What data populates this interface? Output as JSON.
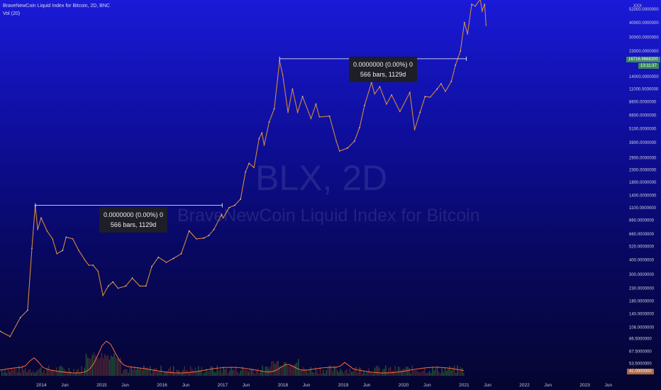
{
  "header": {
    "title": "BraveNewCoin Liquid Index for Bitcoin, 2D, BNC",
    "indicator": "Vol (20)"
  },
  "watermark": {
    "ticker": "BLX, 2D",
    "name": "BraveNewCoin Liquid Index for Bitcoin"
  },
  "tooltips": [
    {
      "line1": "0.0000000 (0.00%) 0",
      "line2": "566 bars, 1129d"
    },
    {
      "line1": "0.0000000 (0.00%) 0",
      "line2": "566 bars, 1129d"
    }
  ],
  "price_axis": {
    "labels": [
      "52000.0000000",
      "40000.0000000",
      "30000.0000000",
      "23000.0000000",
      "14000.0000000",
      "11000.0000000",
      "8600.0000000",
      "6600.0000000",
      "5100.0000000",
      "3900.0000000",
      "2900.0000000",
      "2300.0000000",
      "1800.0000000",
      "1400.0000000",
      "1100.0000000",
      "860.0000000",
      "660.0000000",
      "520.0000000",
      "400.0000000",
      "300.0000000",
      "230.0000000",
      "180.0000000",
      "140.0000000",
      "108.0000000",
      "86.5000000",
      "67.5000000",
      "53.5000000"
    ],
    "top_tag": "XXX",
    "current_price": "16716.9668200",
    "countdown": "13:11:37",
    "bottom_tag": "42.0000000"
  },
  "time_axis": {
    "labels": [
      "2014",
      "Jun",
      "2015",
      "Jun",
      "2016",
      "Jun",
      "2017",
      "Jun",
      "2018",
      "Jun",
      "2019",
      "Jun",
      "2020",
      "Jun",
      "2021",
      "Jun",
      "2022",
      "Jun",
      "2023",
      "Jun"
    ]
  },
  "colors": {
    "up": "#c8c8c8",
    "down": "#d08a3a",
    "line": "#ffffff",
    "volume_ma": "#ff6a3a",
    "vol_up": "#2f6a2f",
    "vol_down": "#6a2f2f",
    "tag_green": "#3a8a5a"
  },
  "chart_data": {
    "type": "line",
    "ylog": true,
    "ylim": [
      42,
      62000
    ],
    "xlim": [
      "2013-05-01",
      "2023-09-01"
    ],
    "series": [
      {
        "x": [
          "2013-05-01",
          "2013-07-01",
          "2013-09-01",
          "2013-10-15",
          "2013-11-10",
          "2013-11-30",
          "2013-12-15",
          "2014-01-05",
          "2014-02-10",
          "2014-03-15",
          "2014-04-10",
          "2014-05-15",
          "2014-06-05",
          "2014-07-15",
          "2014-08-20",
          "2014-09-25",
          "2014-10-20",
          "2014-11-15",
          "2014-12-15",
          "2015-01-14",
          "2015-02-15",
          "2015-03-15",
          "2015-04-15",
          "2015-06-01",
          "2015-07-10",
          "2015-08-25",
          "2015-10-01",
          "2015-11-05",
          "2015-12-15",
          "2016-02-01",
          "2016-03-15",
          "2016-05-01",
          "2016-06-18",
          "2016-08-01",
          "2016-09-15",
          "2016-10-15",
          "2016-11-15",
          "2016-12-31",
          "2017-01-10",
          "2017-02-15",
          "2017-03-20",
          "2017-04-25",
          "2017-05-25",
          "2017-06-15",
          "2017-07-15",
          "2017-08-15",
          "2017-09-01",
          "2017-09-15",
          "2017-10-15",
          "2017-11-15",
          "2017-12-17",
          "2018-01-05",
          "2018-02-06",
          "2018-03-05",
          "2018-04-05",
          "2018-05-05",
          "2018-06-25",
          "2018-07-25",
          "2018-08-15",
          "2018-10-15",
          "2018-11-25",
          "2018-12-15",
          "2019-02-01",
          "2019-03-15",
          "2019-04-15",
          "2019-05-15",
          "2019-06-26",
          "2019-07-15",
          "2019-08-15",
          "2019-09-25",
          "2019-10-26",
          "2019-12-15",
          "2020-02-13",
          "2020-03-13",
          "2020-04-15",
          "2020-05-15",
          "2020-06-15",
          "2020-07-27",
          "2020-08-20",
          "2020-09-15",
          "2020-10-21",
          "2020-11-15",
          "2020-12-15",
          "2021-01-08",
          "2021-01-27",
          "2021-02-21",
          "2021-03-15",
          "2021-04-14",
          "2021-04-25",
          "2021-05-10",
          "2021-05-19"
        ],
        "values": [
          100,
          90,
          130,
          150,
          500,
          1150,
          720,
          900,
          700,
          600,
          450,
          480,
          620,
          600,
          480,
          400,
          360,
          360,
          320,
          200,
          240,
          260,
          230,
          240,
          280,
          240,
          240,
          350,
          420,
          380,
          410,
          450,
          700,
          600,
          610,
          640,
          720,
          960,
          900,
          1100,
          1150,
          1300,
          2200,
          2600,
          2400,
          4200,
          4700,
          3700,
          5800,
          7500,
          19000,
          14500,
          7000,
          11000,
          7000,
          9500,
          6200,
          8200,
          6400,
          6500,
          4000,
          3300,
          3500,
          4000,
          5200,
          8000,
          12500,
          10000,
          11500,
          8200,
          9800,
          7100,
          10300,
          5000,
          7000,
          9500,
          9400,
          11000,
          12200,
          10500,
          12800,
          17500,
          23000,
          40000,
          32000,
          57000,
          55000,
          63000,
          50000,
          57000,
          38000
        ]
      }
    ],
    "tooltip_ranges": [
      {
        "x_start": "2013-12-01",
        "x_end": "2017-01-04",
        "y": 1150
      },
      {
        "x_start": "2017-12-17",
        "x_end": "2021-01-20",
        "y": 19800
      }
    ]
  }
}
